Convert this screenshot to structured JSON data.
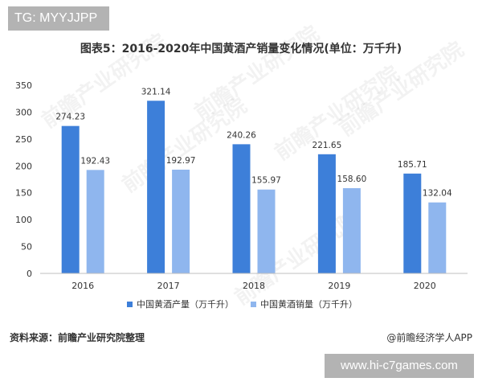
{
  "badges": {
    "top_tag": "TG: MYYJJPP",
    "site": "www.hi-c7games.com"
  },
  "footer": {
    "source": "资料来源：前瞻产业研究院整理",
    "brand": "@前瞻经济学人APP"
  },
  "watermark": "前瞻产业研究院",
  "colors": {
    "production": "#3d7fd9",
    "sales": "#8fb6ee",
    "axis": "#bfbfbf",
    "text": "#333333"
  },
  "chart_data": {
    "type": "bar",
    "title": "图表5：2016-2020年中国黄酒产销量变化情况(单位：万千升)",
    "categories": [
      "2016",
      "2017",
      "2018",
      "2019",
      "2020"
    ],
    "series": [
      {
        "name": "中国黄酒产量（万千升）",
        "values": [
          274.23,
          321.14,
          240.26,
          221.65,
          185.71
        ],
        "labels": [
          "274.23",
          "321.14",
          "240.26",
          "221.65",
          "185.71"
        ]
      },
      {
        "name": "中国黄酒销量（万千升）",
        "values": [
          192.43,
          192.97,
          155.97,
          158.6,
          132.04
        ],
        "labels": [
          "192.43",
          "192.97",
          "155.97",
          "158.60",
          "132.04"
        ]
      }
    ],
    "y_ticks": [
      "0",
      "50",
      "100",
      "150",
      "200",
      "250",
      "300",
      "350"
    ],
    "ylim": [
      0,
      350
    ],
    "grid": false,
    "legend_position": "bottom-center"
  }
}
